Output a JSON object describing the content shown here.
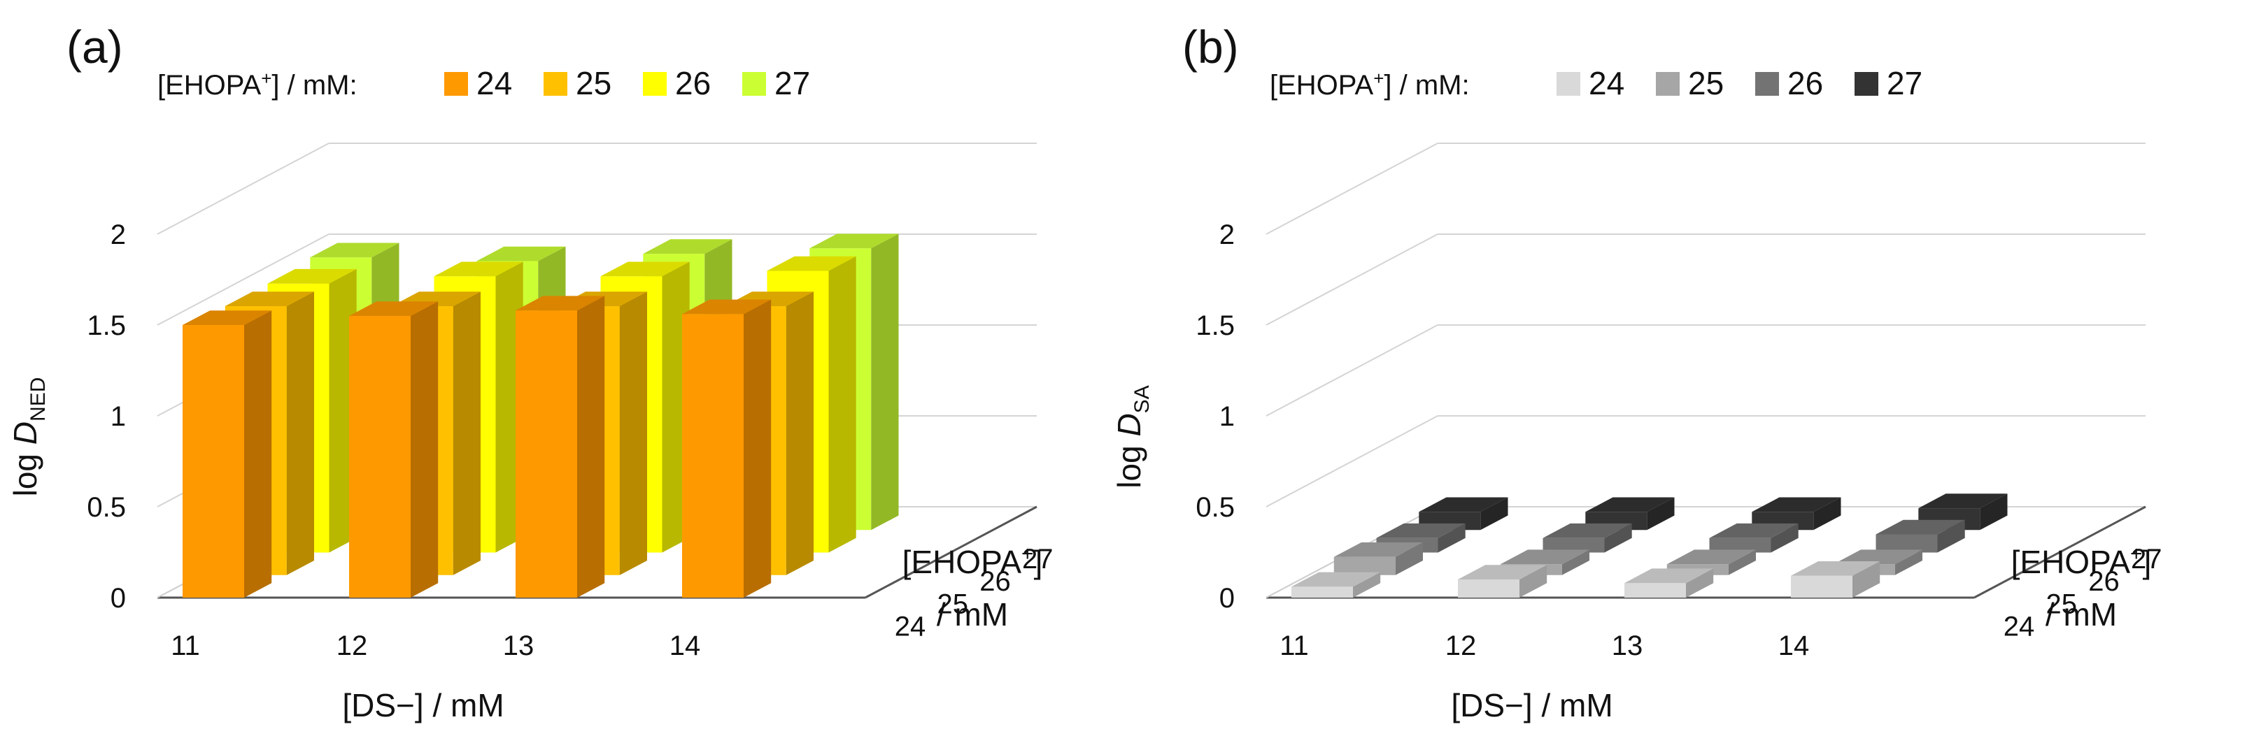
{
  "chart_data": [
    {
      "panel_label": "(a)",
      "type": "bar3d",
      "legend": {
        "title": "[EHOPA+] / mM:",
        "title_pre": "[EHOPA",
        "title_sup": "+",
        "title_post": "] / mM:",
        "entries": [
          {
            "label": "24",
            "color": "#FF9900"
          },
          {
            "label": "25",
            "color": "#FFC000"
          },
          {
            "label": "26",
            "color": "#FFFF00"
          },
          {
            "label": "27",
            "color": "#CCFF33"
          }
        ]
      },
      "x_categories": [
        "11",
        "12",
        "13",
        "14"
      ],
      "depth_categories": [
        "24",
        "25",
        "26",
        "27"
      ],
      "z_ticks": [
        "0",
        "0.5",
        "1",
        "1.5",
        "2"
      ],
      "zlim": [
        0,
        2
      ],
      "zlabel_prefix": "log ",
      "zlabel_var": "D",
      "zlabel_sub": "NED",
      "xlabel": "[DS−] / mM",
      "depth_label_line1": "[EHOPA+]",
      "depth_label_line1_pre": "[EHOPA",
      "depth_label_line1_sup": "+",
      "depth_label_line1_post": "]",
      "depth_label_line2": "/ mM",
      "series": [
        {
          "name": "24",
          "values": [
            1.5,
            1.55,
            1.58,
            1.56
          ]
        },
        {
          "name": "25",
          "values": [
            1.48,
            1.48,
            1.48,
            1.48
          ]
        },
        {
          "name": "26",
          "values": [
            1.48,
            1.52,
            1.52,
            1.55
          ]
        },
        {
          "name": "27",
          "values": [
            1.5,
            1.48,
            1.52,
            1.55
          ]
        }
      ]
    },
    {
      "panel_label": "(b)",
      "type": "bar3d",
      "legend": {
        "title": "[EHOPA+] / mM:",
        "title_pre": "[EHOPA",
        "title_sup": "+",
        "title_post": "] / mM:",
        "entries": [
          {
            "label": "24",
            "color": "#D9D9D9"
          },
          {
            "label": "25",
            "color": "#A6A6A6"
          },
          {
            "label": "26",
            "color": "#737373"
          },
          {
            "label": "27",
            "color": "#333333"
          }
        ]
      },
      "x_categories": [
        "11",
        "12",
        "13",
        "14"
      ],
      "depth_categories": [
        "24",
        "25",
        "26",
        "27"
      ],
      "z_ticks": [
        "0",
        "0.5",
        "1",
        "1.5",
        "2"
      ],
      "zlim": [
        0,
        2
      ],
      "zlabel_prefix": "log ",
      "zlabel_var": "D",
      "zlabel_sub": "SA",
      "xlabel": "[DS−] / mM",
      "depth_label_line1": "[EHOPA+]",
      "depth_label_line1_pre": "[EHOPA",
      "depth_label_line1_sup": "+",
      "depth_label_line1_post": "]",
      "depth_label_line2": "/ mM",
      "series": [
        {
          "name": "24",
          "values": [
            0.06,
            0.1,
            0.08,
            0.12
          ]
        },
        {
          "name": "25",
          "values": [
            0.1,
            0.06,
            0.06,
            0.06
          ]
        },
        {
          "name": "26",
          "values": [
            0.08,
            0.08,
            0.08,
            0.1
          ]
        },
        {
          "name": "27",
          "values": [
            0.1,
            0.1,
            0.1,
            0.12
          ]
        }
      ]
    }
  ]
}
